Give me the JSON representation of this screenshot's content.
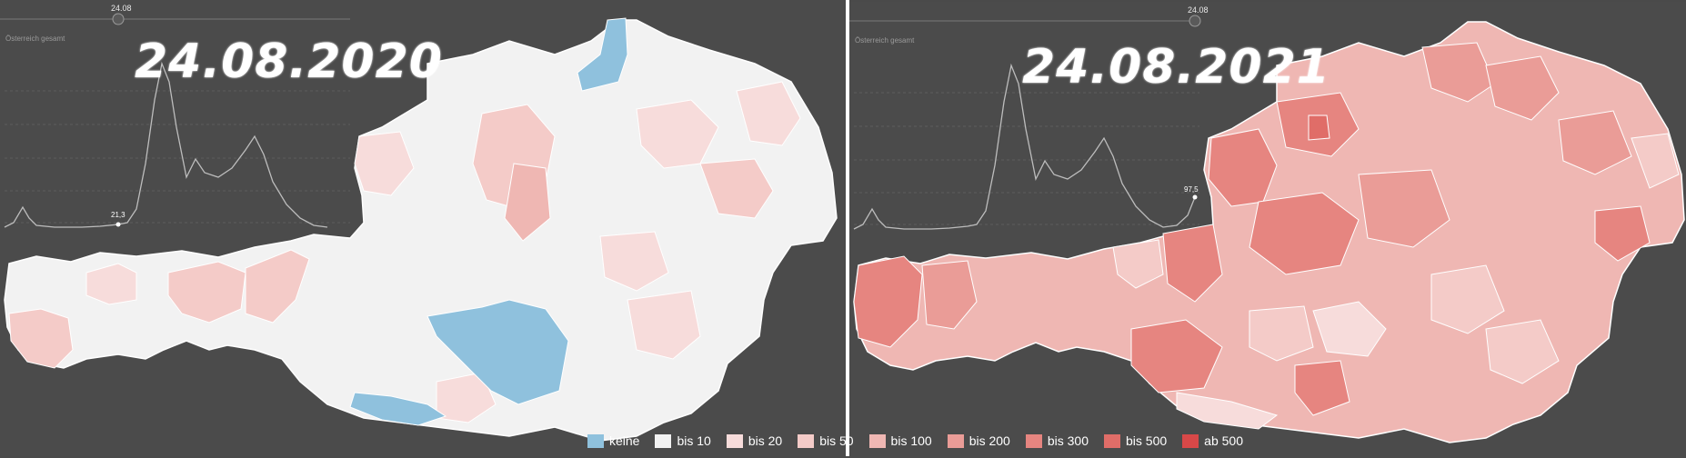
{
  "panels": [
    {
      "date_title": "24.08.2020",
      "slider_value": "24.08",
      "overview_label": "Österreich gesamt",
      "point_value": "21,3"
    },
    {
      "date_title": "24.08.2021",
      "slider_value": "24.08",
      "overview_label": "Österreich gesamt",
      "point_value": "97,5"
    }
  ],
  "legend": [
    {
      "label": "keine",
      "color": "#8fc1dd"
    },
    {
      "label": "bis 10",
      "color": "#f2f2f2"
    },
    {
      "label": "bis 20",
      "color": "#f7dcdb"
    },
    {
      "label": "bis 50",
      "color": "#f4cbc8"
    },
    {
      "label": "bis 100",
      "color": "#efb7b3"
    },
    {
      "label": "bis 200",
      "color": "#ea9c97"
    },
    {
      "label": "bis 300",
      "color": "#e68580"
    },
    {
      "label": "bis 500",
      "color": "#e06d68"
    },
    {
      "label": "ab 500",
      "color": "#d84848"
    }
  ],
  "colors": {
    "background": "#4b4b4b",
    "border": "#ffffff",
    "trendline": "#bdbdbd"
  }
}
